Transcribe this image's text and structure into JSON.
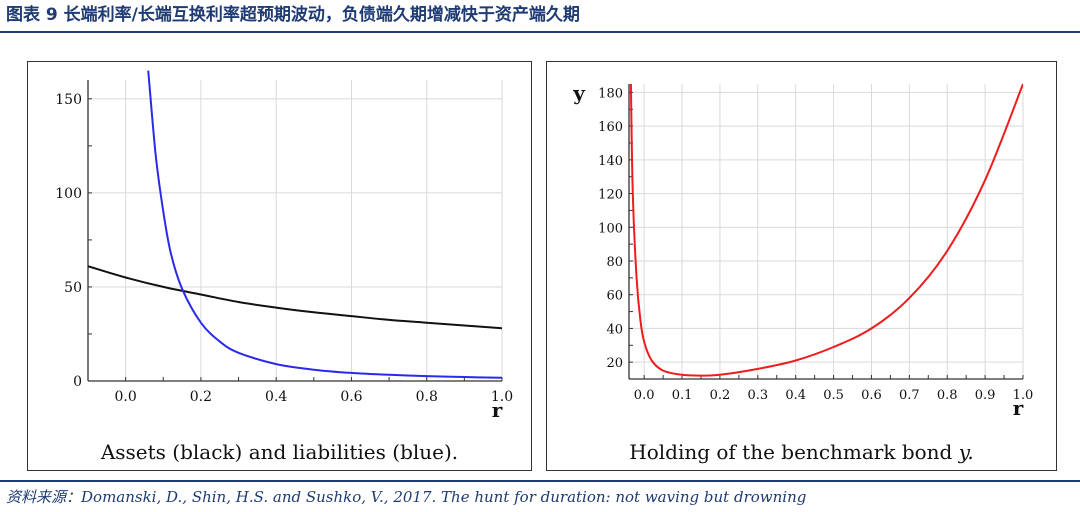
{
  "header": {
    "title": "图表 9 长端利率/长端互换利率超预期波动，负债端久期增减快于资产端久期"
  },
  "source": {
    "label": "资料来源：",
    "text": "Domanski, D., Shin, H.S. and Sushko, V., 2017. The hunt for duration: not waving but drowning"
  },
  "colors": {
    "title": "#1f3b73",
    "assets": "#111111",
    "liabilities": "#2a2aee",
    "holding": "#ee1c1c"
  },
  "chart_data": [
    {
      "type": "line",
      "caption": "Assets (black) and liabilities (blue).",
      "xlabel": "r",
      "ylabel": "",
      "xlim": [
        -0.1,
        1.0
      ],
      "ylim": [
        0,
        160
      ],
      "xticks": [
        "0.0",
        "0.2",
        "0.4",
        "0.6",
        "0.8",
        "1.0"
      ],
      "yticks": [
        "0",
        "50",
        "100",
        "150"
      ],
      "grid": true,
      "legend": "none",
      "series": [
        {
          "color": "black",
          "x": [
            -0.1,
            0.0,
            0.1,
            0.2,
            0.3,
            0.4,
            0.5,
            0.6,
            0.7,
            0.8,
            0.9,
            1.0
          ],
          "y": [
            61,
            55,
            50,
            46,
            42,
            39,
            36.5,
            34.5,
            32.5,
            31,
            29.5,
            28
          ]
        },
        {
          "color": "blue",
          "x": [
            0.06,
            0.08,
            0.1,
            0.12,
            0.15,
            0.2,
            0.25,
            0.3,
            0.4,
            0.5,
            0.6,
            0.7,
            0.8,
            0.9,
            1.0
          ],
          "y": [
            165,
            120,
            90,
            68,
            49,
            31,
            21,
            15,
            9,
            6,
            4.3,
            3.3,
            2.6,
            2.1,
            1.7
          ]
        }
      ]
    },
    {
      "type": "line",
      "caption_text": "Holding of the benchmark bond ",
      "caption_var": "y.",
      "xlabel": "r",
      "ylabel": "y",
      "xlim": [
        -0.04,
        1.0
      ],
      "ylim": [
        10,
        185
      ],
      "xticks": [
        "0.0",
        "0.1",
        "0.2",
        "0.3",
        "0.4",
        "0.5",
        "0.6",
        "0.7",
        "0.8",
        "0.9",
        "1.0"
      ],
      "yticks": [
        "20",
        "40",
        "60",
        "80",
        "100",
        "120",
        "140",
        "160",
        "180"
      ],
      "grid": true,
      "legend": "none",
      "series": [
        {
          "color": "red",
          "x": [
            -0.035,
            -0.03,
            -0.02,
            -0.01,
            0.0,
            0.02,
            0.05,
            0.1,
            0.15,
            0.2,
            0.3,
            0.4,
            0.5,
            0.6,
            0.7,
            0.8,
            0.9,
            1.0
          ],
          "y": [
            185,
            120,
            70,
            45,
            32,
            21,
            15,
            12.5,
            12,
            12.5,
            16,
            21,
            29,
            40,
            58,
            86,
            128,
            185
          ]
        }
      ]
    }
  ]
}
